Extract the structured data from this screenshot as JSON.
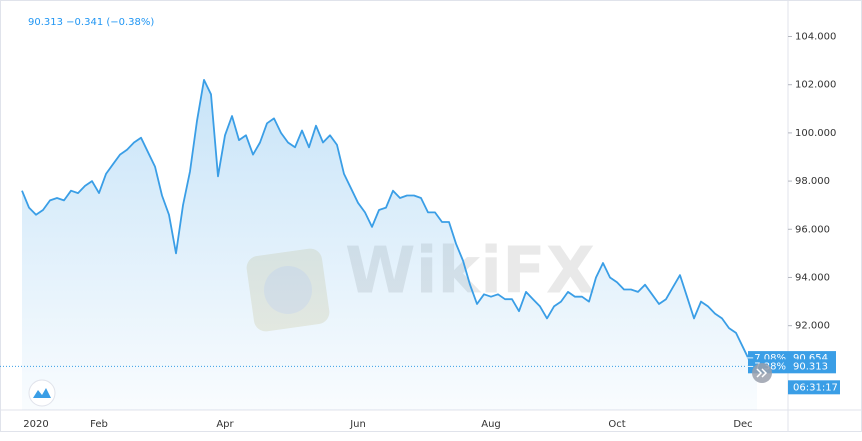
{
  "chart_data": {
    "type": "area",
    "header": "90.313 −0.341 (−0.38%)",
    "watermark": "WikiFX",
    "color": "#3a9ee6",
    "grid": false,
    "categories": [
      null,
      null,
      "2020",
      null,
      null,
      null,
      null,
      null,
      null,
      null,
      null,
      "Feb",
      null,
      null,
      null,
      null,
      null,
      null,
      null,
      null,
      null,
      null,
      null,
      null,
      null,
      null,
      null,
      null,
      null,
      "Apr",
      null,
      null,
      null,
      null,
      null,
      null,
      null,
      null,
      null,
      null,
      null,
      null,
      null,
      null,
      null,
      null,
      null,
      null,
      "Jun",
      null,
      null,
      null,
      null,
      null,
      null,
      null,
      null,
      null,
      null,
      null,
      null,
      null,
      null,
      null,
      null,
      null,
      null,
      "Aug",
      null,
      null,
      null,
      null,
      null,
      null,
      null,
      null,
      null,
      null,
      null,
      null,
      null,
      null,
      null,
      null,
      null,
      "Oct",
      null,
      null,
      null,
      null,
      null,
      null,
      null,
      null,
      null,
      null,
      null,
      null,
      null,
      null,
      null,
      null,
      null,
      "Dec",
      null,
      null
    ],
    "values": [
      97.6,
      96.9,
      96.6,
      96.8,
      97.2,
      97.3,
      97.2,
      97.6,
      97.5,
      97.8,
      98.0,
      97.5,
      98.3,
      98.7,
      99.1,
      99.3,
      99.6,
      99.8,
      99.2,
      98.6,
      97.4,
      96.6,
      95.0,
      97.0,
      98.4,
      100.5,
      102.2,
      101.6,
      98.2,
      99.9,
      100.7,
      99.7,
      99.9,
      99.1,
      99.6,
      100.4,
      100.6,
      100.0,
      99.6,
      99.4,
      100.1,
      99.4,
      100.3,
      99.6,
      99.9,
      99.5,
      98.3,
      97.7,
      97.1,
      96.7,
      96.1,
      96.8,
      96.9,
      97.6,
      97.3,
      97.4,
      97.4,
      97.3,
      96.7,
      96.7,
      96.3,
      96.3,
      95.4,
      94.7,
      93.7,
      92.9,
      93.3,
      93.2,
      93.3,
      93.1,
      93.1,
      92.6,
      93.4,
      93.1,
      92.8,
      92.3,
      92.8,
      93.0,
      93.4,
      93.2,
      93.2,
      93.0,
      94.0,
      94.6,
      94.0,
      93.8,
      93.5,
      93.5,
      93.4,
      93.7,
      93.3,
      92.9,
      93.1,
      93.6,
      94.1,
      93.2,
      92.3,
      93.0,
      92.8,
      92.5,
      92.3,
      91.9,
      91.7,
      91.1,
      90.5,
      90.7
    ],
    "ylim": [
      88.5,
      105.1
    ],
    "yticks": [
      {
        "value": 92,
        "label": "92.000"
      },
      {
        "value": 94,
        "label": "94.000"
      },
      {
        "value": 96,
        "label": "96.000"
      },
      {
        "value": 98,
        "label": "98.000"
      },
      {
        "value": 100,
        "label": "100.000"
      },
      {
        "value": 102,
        "label": "102.000"
      },
      {
        "value": 104,
        "label": "104.000"
      }
    ],
    "price_tags": [
      {
        "value": 90.654,
        "label": "90.654",
        "change": "−7.08%"
      },
      {
        "value": 90.313,
        "label": "90.313",
        "change": "−7.38%"
      }
    ],
    "time_label": "06:31:17"
  }
}
